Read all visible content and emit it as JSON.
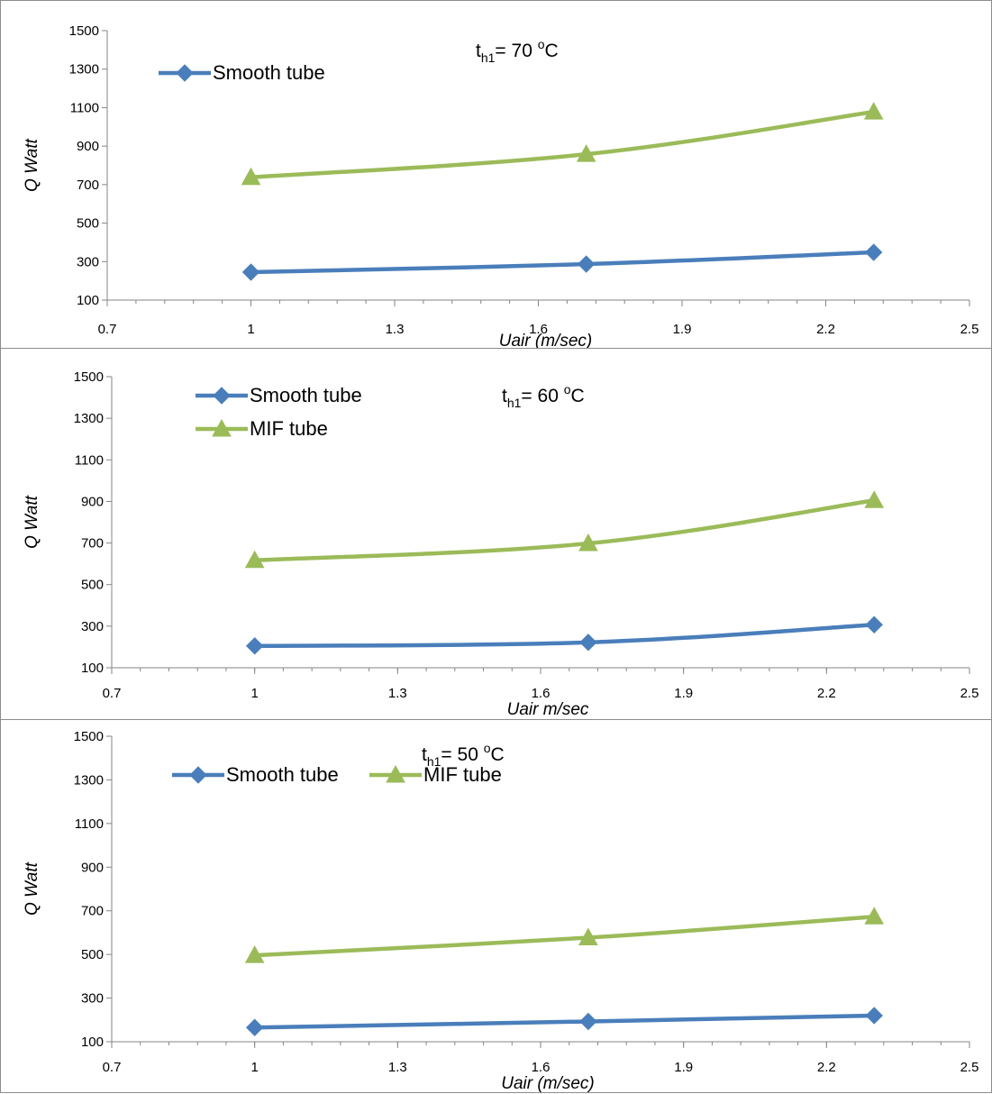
{
  "chart_data": [
    {
      "type": "line",
      "annotation": {
        "main": "t",
        "sub": "h1",
        "value": "= 70 ",
        "sup": "o",
        "unit": "C"
      },
      "xlabel": "Uair (m/sec)",
      "ylabel": "Q  Watt",
      "xlim": [
        0.7,
        2.5
      ],
      "ylim": [
        100,
        1500
      ],
      "xticks": [
        "0.7",
        "1",
        "1.3",
        "1.6",
        "1.9",
        "2.2",
        "2.5"
      ],
      "yticks": [
        "100",
        "300",
        "500",
        "700",
        "900",
        "1100",
        "1300",
        "1500"
      ],
      "legend": [
        "Smooth tube"
      ],
      "legend_layout": "vertical",
      "x": [
        1.0,
        1.7,
        2.3
      ],
      "series": [
        {
          "name": "Smooth tube",
          "values": [
            245,
            287,
            348
          ],
          "color": "#4a7ebb",
          "marker": "diamond"
        },
        {
          "values": [
            738,
            858,
            1078
          ],
          "color": "#9bbb59",
          "marker": "triangle"
        }
      ]
    },
    {
      "type": "line",
      "annotation": {
        "main": "t",
        "sub": "h1",
        "value": "= 60 ",
        "sup": "o",
        "unit": "C"
      },
      "xlabel": "Uair  m/sec",
      "ylabel": "Q  Watt",
      "xlim": [
        0.7,
        2.5
      ],
      "ylim": [
        100,
        1500
      ],
      "xticks": [
        "0.7",
        "1",
        "1.3",
        "1.6",
        "1.9",
        "2.2",
        "2.5"
      ],
      "yticks": [
        "100",
        "300",
        "500",
        "700",
        "900",
        "1100",
        "1300",
        "1500"
      ],
      "legend": [
        "Smooth tube",
        "MIF tube"
      ],
      "legend_layout": "vertical",
      "x": [
        1.0,
        1.7,
        2.3
      ],
      "series": [
        {
          "name": "Smooth tube",
          "values": [
            205,
            222,
            307
          ],
          "color": "#4a7ebb",
          "marker": "diamond"
        },
        {
          "name": "MIF tube",
          "values": [
            617,
            698,
            905
          ],
          "color": "#9bbb59",
          "marker": "triangle"
        }
      ]
    },
    {
      "type": "line",
      "annotation": {
        "main": "t",
        "sub": "h1",
        "value": "= 50 ",
        "sup": "o",
        "unit": "C"
      },
      "xlabel": "Uair (m/sec)",
      "ylabel": "Q  Watt",
      "xlim": [
        0.7,
        2.5
      ],
      "ylim": [
        100,
        1500
      ],
      "xticks": [
        "0.7",
        "1",
        "1.3",
        "1.6",
        "1.9",
        "2.2",
        "2.5"
      ],
      "yticks": [
        "100",
        "300",
        "500",
        "700",
        "900",
        "1100",
        "1300",
        "1500"
      ],
      "legend": [
        "Smooth tube",
        "MIF tube"
      ],
      "legend_layout": "horizontal",
      "x": [
        1.0,
        1.7,
        2.3
      ],
      "series": [
        {
          "name": "Smooth tube",
          "values": [
            165,
            193,
            220
          ],
          "color": "#4a7ebb",
          "marker": "diamond"
        },
        {
          "name": "MIF tube",
          "values": [
            496,
            577,
            673
          ],
          "color": "#9bbb59",
          "marker": "triangle"
        }
      ]
    }
  ]
}
